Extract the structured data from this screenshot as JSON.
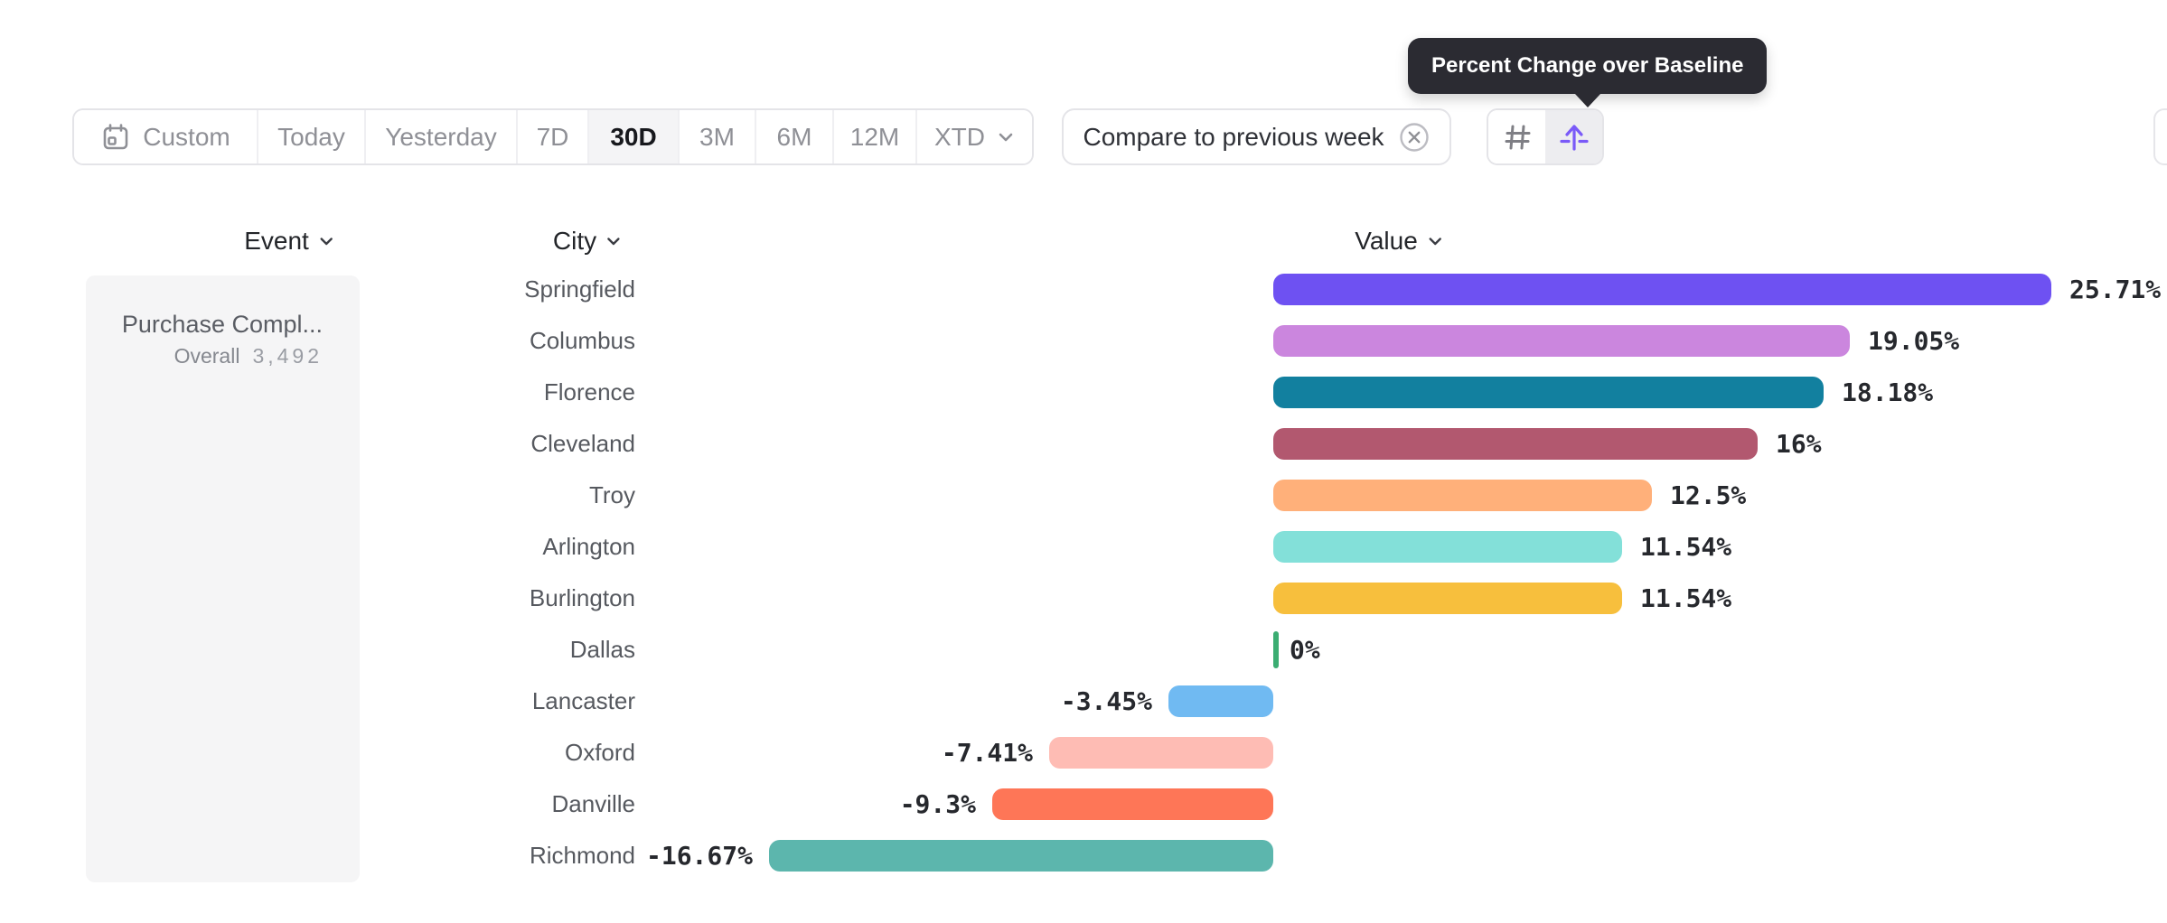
{
  "tooltip": {
    "text": "Percent Change over Baseline"
  },
  "toolbar": {
    "segments": [
      "Custom",
      "Today",
      "Yesterday",
      "7D",
      "30D",
      "3M",
      "6M",
      "12M",
      "XTD"
    ],
    "selected": "30D",
    "selected_index": 4,
    "compare_label": "Compare to previous week",
    "view_toggle": {
      "options": [
        "numeric",
        "percent-change-baseline"
      ],
      "active": "percent-change-baseline"
    }
  },
  "columns": [
    {
      "label": "Event"
    },
    {
      "label": "City"
    },
    {
      "label": "Value"
    }
  ],
  "event_card": {
    "name": "Purchase Compl...",
    "overall_label": "Overall",
    "overall_value": "3,492"
  },
  "chart_data": {
    "type": "bar",
    "orientation": "horizontal",
    "title": "Percent Change over Baseline",
    "categories": [
      "Springfield",
      "Columbus",
      "Florence",
      "Cleveland",
      "Troy",
      "Arlington",
      "Burlington",
      "Dallas",
      "Lancaster",
      "Oxford",
      "Danville",
      "Richmond"
    ],
    "values": [
      25.71,
      19.05,
      18.18,
      16,
      12.5,
      11.54,
      11.54,
      0,
      -3.45,
      -7.41,
      -9.3,
      -16.67
    ],
    "labels": [
      "25.71%",
      "19.05%",
      "18.18%",
      "16%",
      "12.5%",
      "11.54%",
      "11.54%",
      "0%",
      "-3.45%",
      "-7.41%",
      "-9.3%",
      "-16.67%"
    ],
    "colors": [
      "#6E51F2",
      "#CB86DE",
      "#12809F",
      "#B2586F",
      "#FFB07A",
      "#83E0D9",
      "#F7BF3D",
      "#3BAD72",
      "#70BAF2",
      "#FEBCB4",
      "#FE7657",
      "#5CB6AD"
    ],
    "xlim": [
      -16.67,
      25.71
    ],
    "baseline": 0,
    "grid": false,
    "legend": false
  },
  "colors": {
    "accent": "#7A5AF8",
    "tooltip_bg": "#2B2B32",
    "selected_segment_bg": "#F4F4F6",
    "zero_tick": "#3BAD72"
  }
}
